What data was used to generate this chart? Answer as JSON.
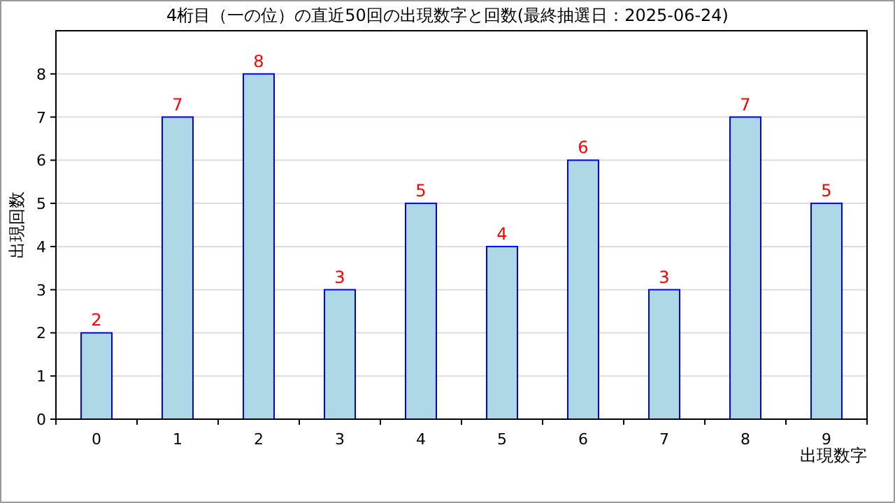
{
  "chart_data": {
    "type": "bar",
    "title": "4桁目（一の位）の直近50回の出現数字と回数(最終抽選日：2025-06-24)",
    "xlabel": "出現数字",
    "ylabel": "出現回数",
    "categories": [
      "0",
      "1",
      "2",
      "3",
      "4",
      "5",
      "6",
      "7",
      "8",
      "9"
    ],
    "values": [
      2,
      7,
      8,
      3,
      5,
      4,
      6,
      3,
      7,
      5
    ],
    "color": "#add8e6",
    "ylim": [
      0,
      9
    ],
    "yticks": [
      0,
      1,
      2,
      3,
      4,
      5,
      6,
      7,
      8
    ],
    "grid": "y",
    "data_labels": true
  }
}
